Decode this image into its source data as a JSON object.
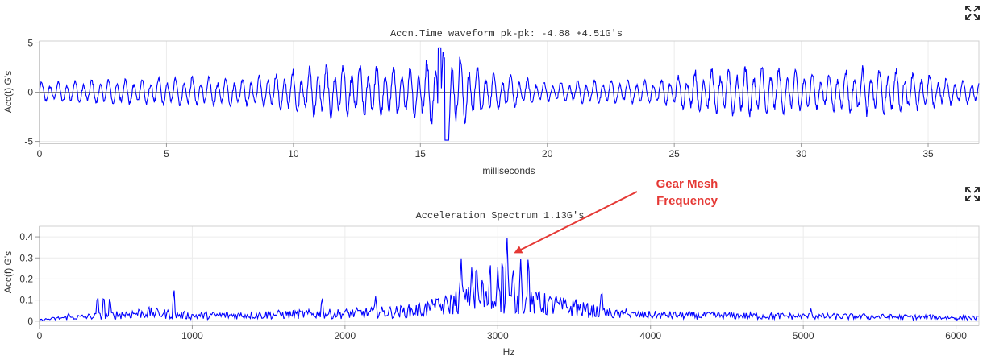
{
  "charts": {
    "waveform": {
      "title": "Accn.Time waveform  pk-pk: -4.88  +4.51G's",
      "xlabel": "milliseconds",
      "ylabel": "Acc(t) G's"
    },
    "spectrum": {
      "title": "Acceleration Spectrum  1.13G's",
      "xlabel": "Hz",
      "ylabel": "Acc(f) G's"
    }
  },
  "annotation": {
    "line1": "Gear Mesh",
    "line2": "Frequency",
    "color": "#e53935",
    "target_hz": 3060,
    "target_value": 0.33
  },
  "icons": {
    "expand": "expand-icon"
  },
  "chart_data": [
    {
      "type": "line",
      "title": "Accn.Time waveform  pk-pk: -4.88  +4.51G's",
      "xlabel": "milliseconds",
      "ylabel": "Acc(t) G's",
      "xlim": [
        0,
        37
      ],
      "ylim": [
        -5.2,
        5.2
      ],
      "xticks": [
        0,
        5,
        10,
        15,
        20,
        25,
        30,
        35
      ],
      "yticks": [
        -5,
        0,
        5
      ],
      "series_color": "#0000ff",
      "grid": true,
      "envelope": {
        "x": [
          0,
          2,
          4,
          6,
          8,
          9.5,
          10.5,
          12,
          13.5,
          14.5,
          15.5,
          16,
          16.5,
          17.5,
          19,
          20,
          21,
          22.5,
          24,
          25,
          26,
          27,
          28,
          28.5,
          29,
          30,
          31,
          32.5,
          33.5,
          34.5,
          36,
          37
        ],
        "amp": [
          1.0,
          1.3,
          1.4,
          1.6,
          1.5,
          2.0,
          2.6,
          2.9,
          2.7,
          2.5,
          3.8,
          4.6,
          3.9,
          2.3,
          1.5,
          1.0,
          1.2,
          1.3,
          1.2,
          1.6,
          2.4,
          2.6,
          2.7,
          2.8,
          2.5,
          2.1,
          2.0,
          2.6,
          2.5,
          2.1,
          1.4,
          1.2
        ]
      },
      "min": -4.88,
      "max": 4.51,
      "carrier_period_ms": 0.33
    },
    {
      "type": "line",
      "title": "Acceleration Spectrum  1.13G's",
      "xlabel": "Hz",
      "ylabel": "Acc(f) G's",
      "xlim": [
        0,
        6150
      ],
      "ylim": [
        -0.02,
        0.45
      ],
      "xticks": [
        0,
        1000,
        2000,
        3000,
        4000,
        5000,
        6000
      ],
      "yticks": [
        0,
        0.1,
        0.2,
        0.3,
        0.4
      ],
      "series_color": "#0000ff",
      "grid": true,
      "peaks": {
        "x": [
          190,
          380,
          420,
          460,
          880,
          1850,
          2200,
          2580,
          2760,
          2830,
          2860,
          2900,
          2950,
          3000,
          3030,
          3060,
          3100,
          3150,
          3200,
          3270,
          3380,
          3510,
          3680,
          3840,
          4400,
          5050,
          5400
        ],
        "y": [
          0.04,
          0.13,
          0.13,
          0.12,
          0.16,
          0.12,
          0.12,
          0.1,
          0.31,
          0.27,
          0.3,
          0.23,
          0.3,
          0.26,
          0.33,
          0.43,
          0.28,
          0.3,
          0.33,
          0.17,
          0.14,
          0.12,
          0.16,
          0.06,
          0.04,
          0.06,
          0.04
        ]
      },
      "baseline_levels": {
        "x": [
          0,
          150,
          300,
          500,
          700,
          1000,
          1500,
          2000,
          2400,
          2650,
          2750,
          3300,
          3600,
          3800,
          4500,
          5500,
          6150
        ],
        "y": [
          0.005,
          0.015,
          0.02,
          0.03,
          0.04,
          0.025,
          0.03,
          0.035,
          0.045,
          0.07,
          0.1,
          0.08,
          0.05,
          0.03,
          0.025,
          0.02,
          0.015
        ]
      }
    }
  ]
}
